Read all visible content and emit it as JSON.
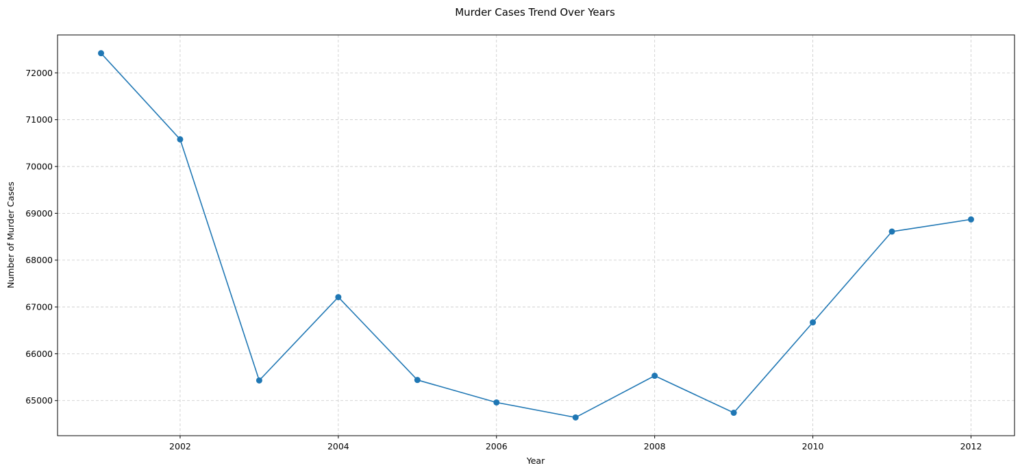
{
  "chart_data": {
    "type": "line",
    "title": "Murder Cases Trend Over Years",
    "xlabel": "Year",
    "ylabel": "Number of Murder Cases",
    "x": [
      2001,
      2002,
      2003,
      2004,
      2005,
      2006,
      2007,
      2008,
      2009,
      2010,
      2011,
      2012
    ],
    "series": [
      {
        "values": [
          72420,
          70580,
          65430,
          67210,
          65440,
          64960,
          64640,
          65530,
          64740,
          66670,
          68610,
          68870
        ]
      }
    ],
    "xticks": [
      2002,
      2004,
      2006,
      2008,
      2010,
      2012
    ],
    "xtick_labels": [
      "2002",
      "2004",
      "2006",
      "2008",
      "2010",
      "2012"
    ],
    "yticks": [
      65000,
      66000,
      67000,
      68000,
      69000,
      70000,
      71000,
      72000
    ],
    "ytick_labels": [
      "65000",
      "66000",
      "67000",
      "68000",
      "69000",
      "70000",
      "71000",
      "72000"
    ],
    "xlim": [
      2000.45,
      2012.55
    ],
    "ylim": [
      64250,
      72810
    ],
    "grid": true,
    "markers": true,
    "colors": {
      "line": "#1f77b4",
      "grid": "#c8c8c8",
      "axes": "#000000"
    }
  }
}
